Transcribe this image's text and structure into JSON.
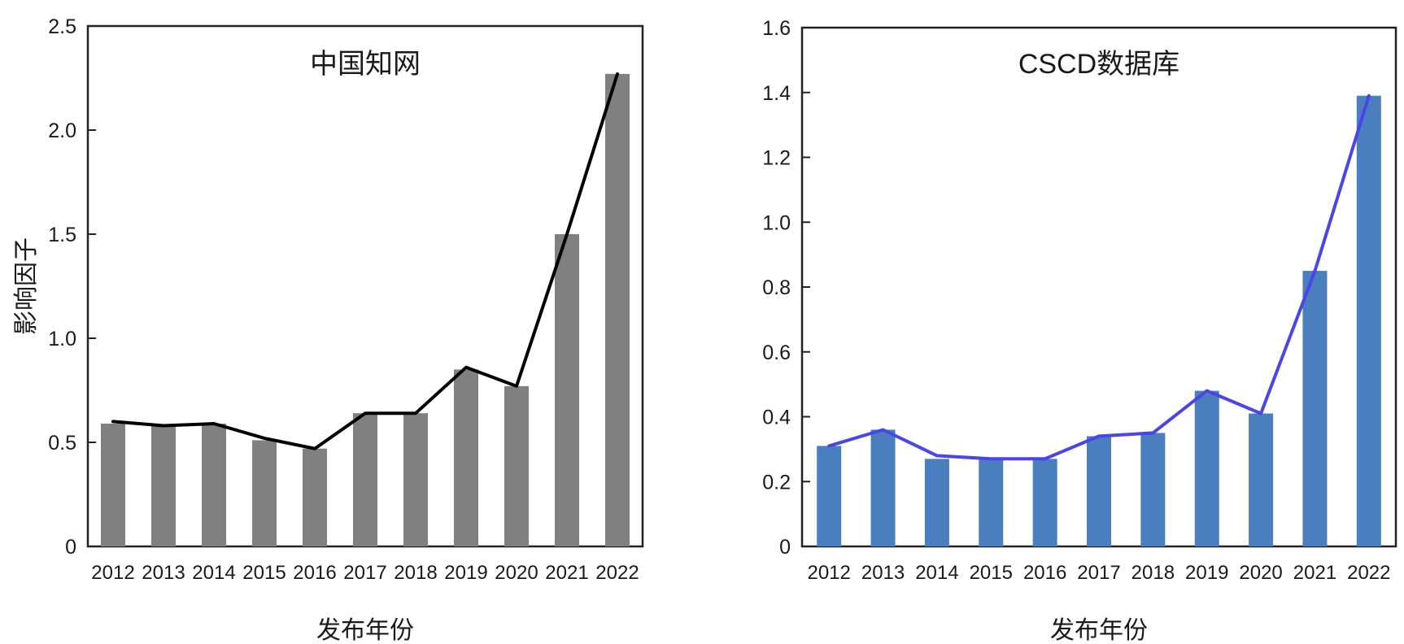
{
  "chart_data": [
    {
      "type": "bar",
      "title": "中国知网",
      "xlabel": "发布年份",
      "ylabel": "影响因子",
      "categories": [
        "2012",
        "2013",
        "2014",
        "2015",
        "2016",
        "2017",
        "2018",
        "2019",
        "2020",
        "2021",
        "2022"
      ],
      "series": [
        {
          "values": [
            0.59,
            0.58,
            0.59,
            0.51,
            0.47,
            0.64,
            0.64,
            0.85,
            0.77,
            1.5,
            2.27
          ],
          "color": "#808080"
        }
      ],
      "line": {
        "values": [
          0.6,
          0.58,
          0.59,
          0.52,
          0.47,
          0.64,
          0.64,
          0.86,
          0.77,
          1.5,
          2.27
        ],
        "color": "#000000"
      },
      "ylim": [
        0,
        2.5
      ],
      "yticks": [
        0,
        0.5,
        1.0,
        1.5,
        2.0,
        2.5
      ],
      "ytick_labels": [
        "0",
        "0.5",
        "1.0",
        "1.5",
        "2.0",
        "2.5"
      ],
      "grid": false,
      "legend": "none"
    },
    {
      "type": "bar",
      "title": "CSCD数据库",
      "xlabel": "发布年份",
      "ylabel": "",
      "categories": [
        "2012",
        "2013",
        "2014",
        "2015",
        "2016",
        "2017",
        "2018",
        "2019",
        "2020",
        "2021",
        "2022"
      ],
      "series": [
        {
          "values": [
            0.31,
            0.36,
            0.27,
            0.27,
            0.27,
            0.34,
            0.35,
            0.48,
            0.41,
            0.85,
            1.39
          ],
          "color": "#4a7ebf"
        }
      ],
      "line": {
        "values": [
          0.31,
          0.36,
          0.28,
          0.27,
          0.27,
          0.34,
          0.35,
          0.48,
          0.41,
          0.85,
          1.39
        ],
        "color": "#4a45e6"
      },
      "ylim": [
        0,
        1.6
      ],
      "yticks": [
        0,
        0.2,
        0.4,
        0.6,
        0.8,
        1.0,
        1.2,
        1.4,
        1.6
      ],
      "ytick_labels": [
        "0",
        "0.2",
        "0.4",
        "0.6",
        "0.8",
        "1.0",
        "1.2",
        "1.4",
        "1.6"
      ],
      "grid": false,
      "legend": "none"
    }
  ]
}
